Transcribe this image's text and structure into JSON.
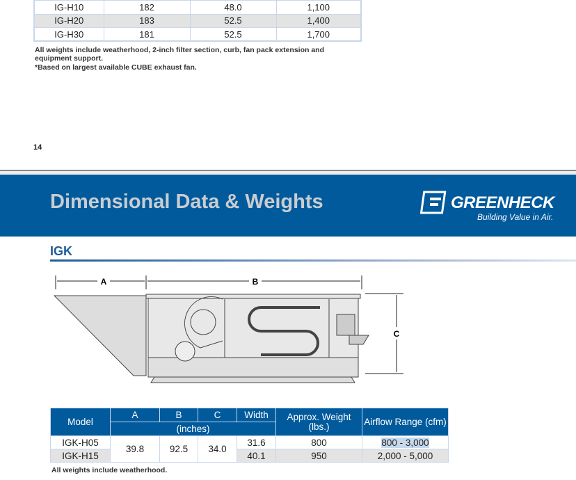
{
  "top_table": {
    "rows": [
      [
        "IG-H10",
        "182",
        "48.0",
        "1,100"
      ],
      [
        "IG-H20",
        "183",
        "52.5",
        "1,400"
      ],
      [
        "IG-H30",
        "181",
        "52.5",
        "1,700"
      ]
    ]
  },
  "top_notes": [
    "All weights include weatherhood, 2-inch filter section, curb, fan pack extension and equipment support.",
    "*Based on largest available CUBE exhaust fan."
  ],
  "page_number": "14",
  "header": {
    "title": "Dimensional Data & Weights",
    "brand": "GREENHECK",
    "tagline": "Building Value in Air.",
    "color": "#005a9c"
  },
  "section": {
    "title": "IGK"
  },
  "diagram": {
    "labels": {
      "a": "A",
      "b": "B",
      "c": "C"
    }
  },
  "igk_table": {
    "headers": {
      "model": "Model",
      "a": "A",
      "b": "B",
      "c": "C",
      "width": "Width",
      "units": "(inches)",
      "weight": "Approx. Weight (lbs.)",
      "airflow": "Airflow Range (cfm)"
    },
    "shared": {
      "a": "39.8",
      "b": "92.5",
      "c": "34.0"
    },
    "rows": [
      {
        "model": "IGK-H05",
        "width": "31.6",
        "weight": "800",
        "airflow": "800 - 3,000"
      },
      {
        "model": "IGK-H15",
        "width": "40.1",
        "weight": "950",
        "airflow": "2,000 - 5,000"
      }
    ]
  },
  "bottom_note": "All weights include weatherhood."
}
